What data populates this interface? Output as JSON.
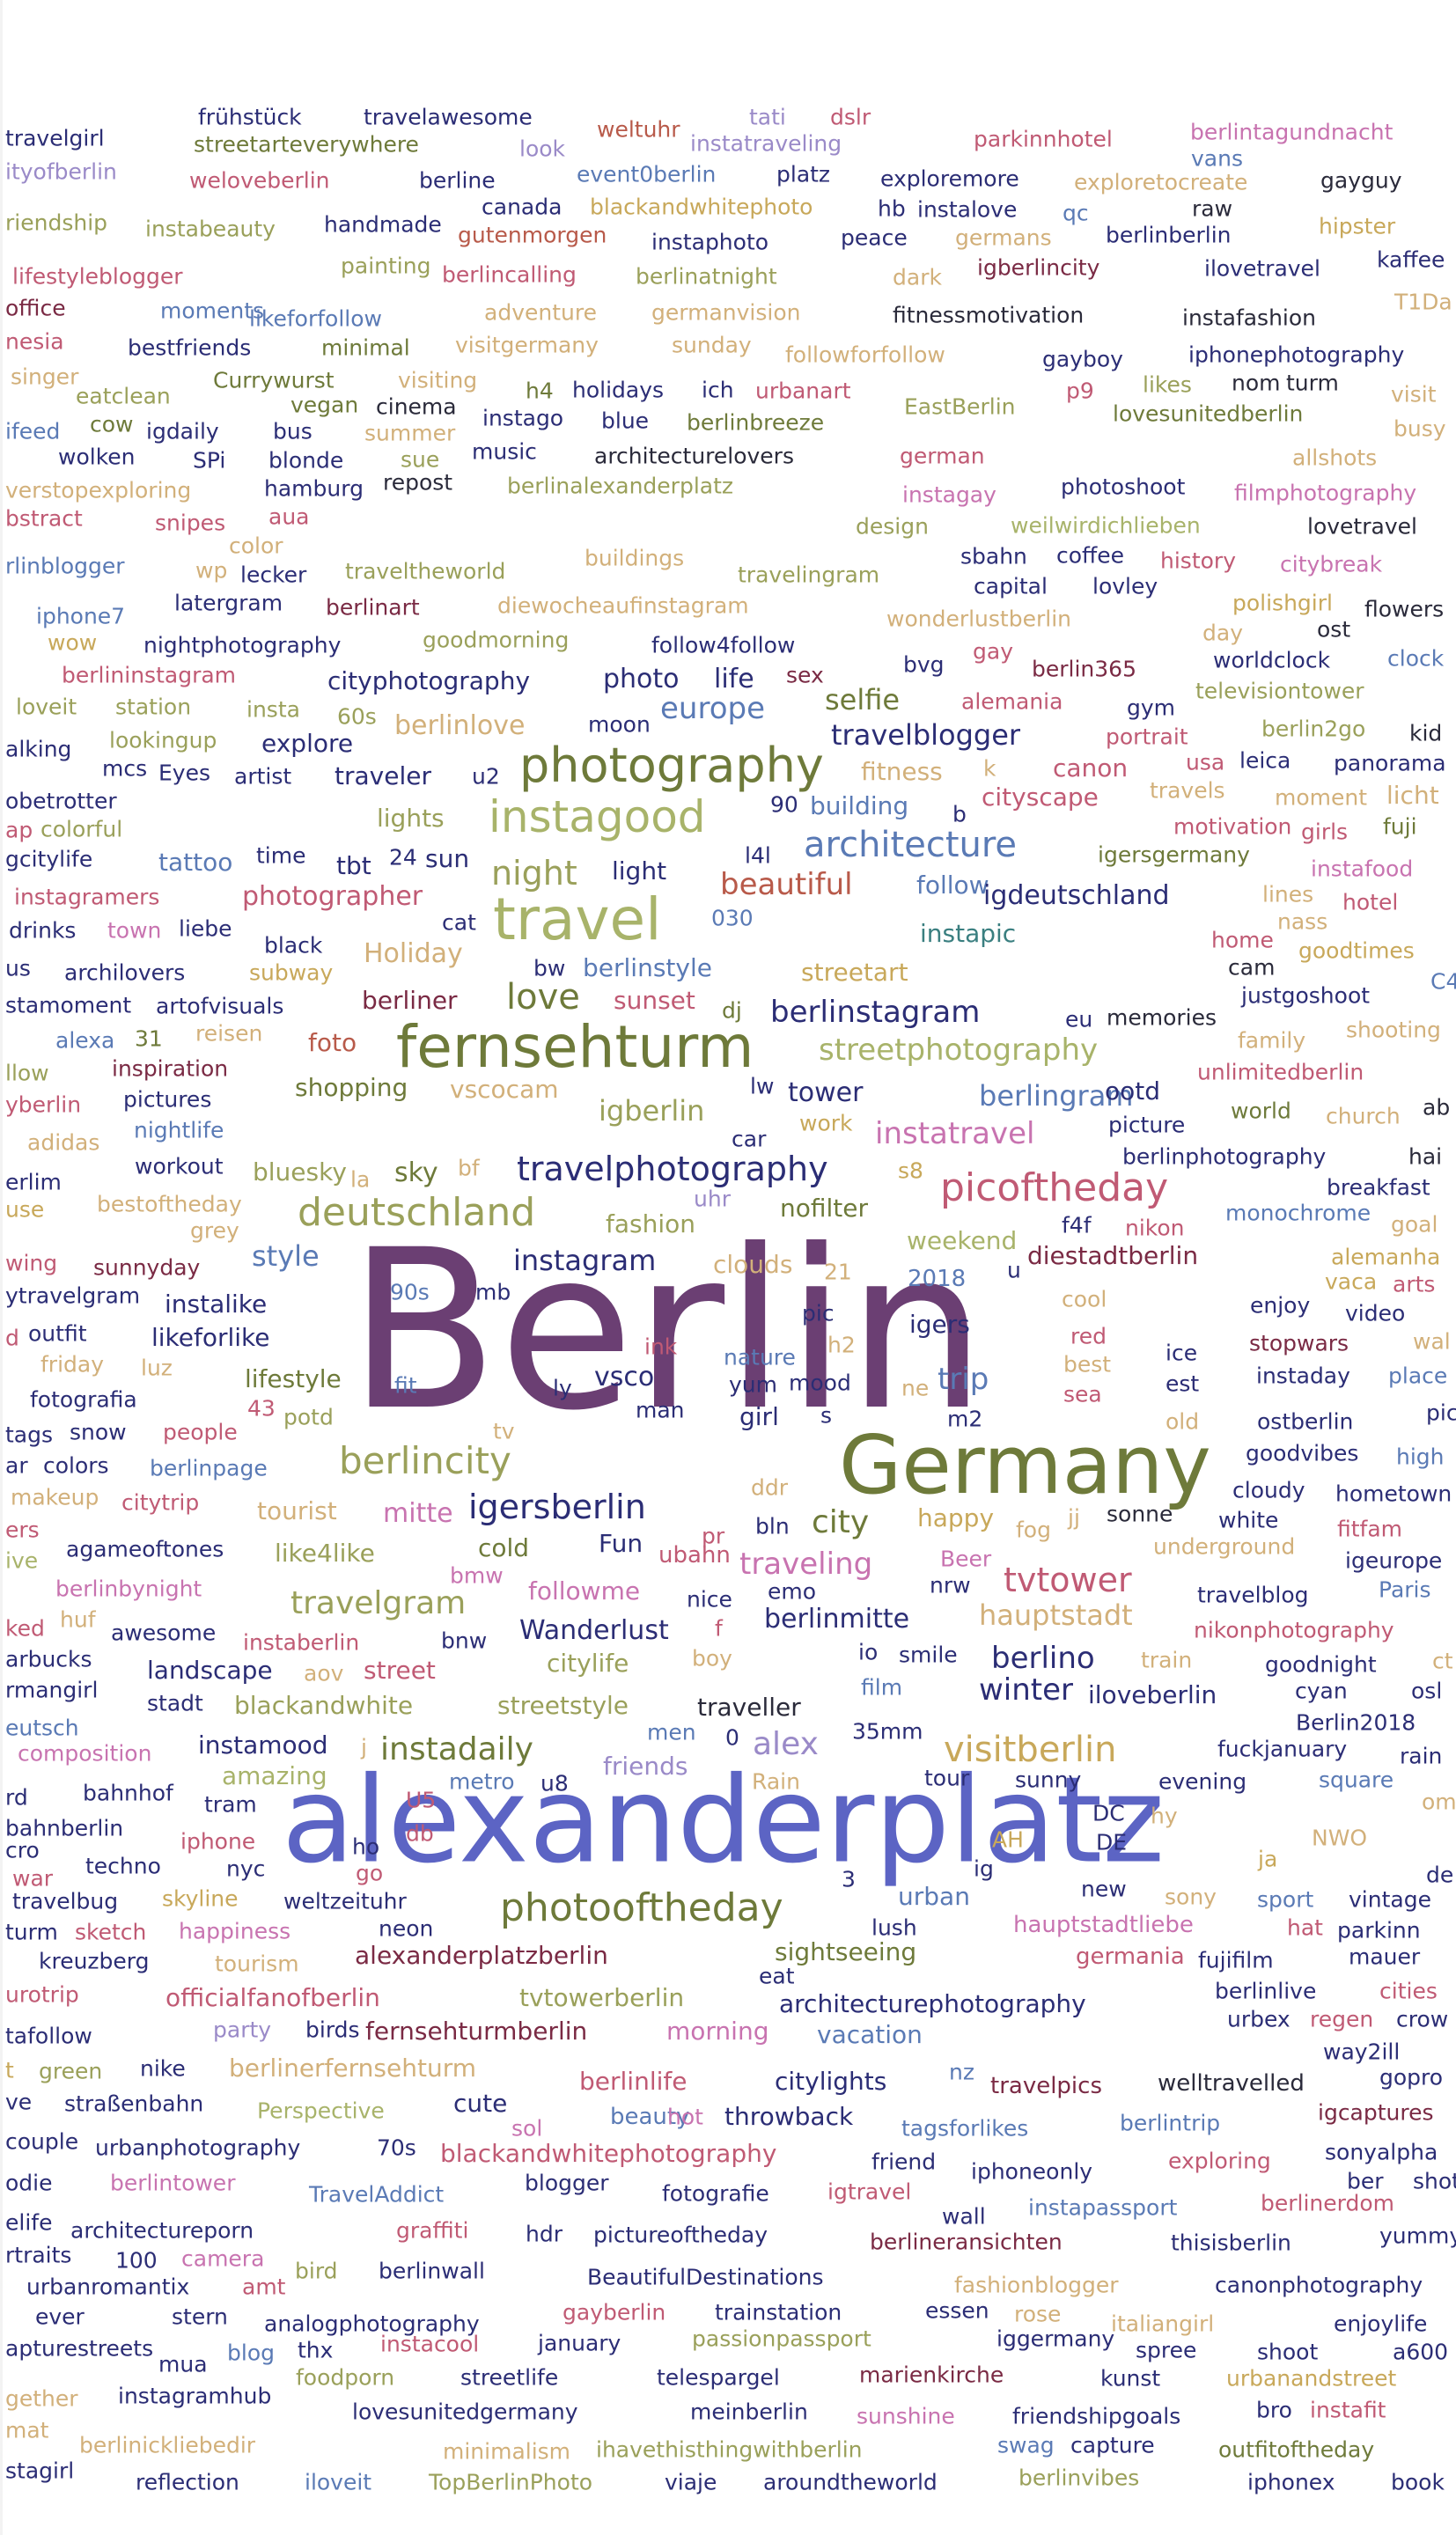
{
  "palette": {
    "purple": "#6b3f73",
    "olive": "#6e7a3a",
    "blue": "#5c64c4",
    "gold": "#c8a85a",
    "tan": "#d2b07a",
    "khaki": "#9aa05a",
    "rose": "#c05a74",
    "pink": "#c873b0",
    "maroon": "#7a2a44",
    "navy": "#2b2d75",
    "teal": "#3a7f80",
    "dark": "#2a2a3a",
    "sage": "#a8b36a",
    "steel": "#5a7ab5",
    "rust": "#b85a4a",
    "lav": "#9a8ac8"
  },
  "words": [
    "Berlin",
    "alexanderplatz",
    "Germany",
    "fernsehturm",
    "travel",
    "photography",
    "instagood",
    "love",
    "deutschland",
    "picoftheday",
    "travelphotography",
    "architecture",
    "berlincity",
    "igersberlin",
    "photooftheday",
    "visitberlin",
    "instadaily",
    "city",
    "tvtower",
    "travelgram",
    "instatravel",
    "streetphotography",
    "berlinstagram",
    "night",
    "beautiful",
    "europe",
    "selfie",
    "travelblogger",
    "alex",
    "trip",
    "vsco",
    "instagram",
    "igberlin",
    "berlingram",
    "tower",
    "streetart",
    "berlinstyle",
    "follow",
    "igdeutschland",
    "instapic",
    "sky",
    "fashion",
    "nofilter",
    "style",
    "winter",
    "berlino",
    "traveling",
    "hauptstadt",
    "berlinmitte",
    "Wanderlust",
    "followme",
    "Fun",
    "cold",
    "ubahn",
    "mitte",
    "like4like",
    "lifestyle",
    "likeforlike",
    "instalike",
    "igers",
    "weekend",
    "diestadtberlin",
    "2018",
    "streetstyle",
    "citylife",
    "blackandwhite",
    "street",
    "landscape",
    "traveller",
    "iloveberlin",
    "friends",
    "amazing",
    "sightseeing",
    "urban",
    "architecturephotography",
    "germania",
    "hauptstadtliebe",
    "fernsehturmberlin",
    "alexanderplatzberlin",
    "officialfanofberlin",
    "tvtowerberlin",
    "morning",
    "vacation",
    "citylights",
    "blackandwhitephotography",
    "throwback",
    "beauty",
    "travelpics",
    "welltravelled",
    "berlinlife",
    "berlinerfernsehturm",
    "frühstück",
    "travelawesome",
    "weltuhr",
    "tati",
    "dslr",
    "travelgirl",
    "streetarteverywhere",
    "look",
    "instatraveling",
    "parkinnhotel",
    "berlintagundnacht",
    "ityofberlin",
    "weloveberlin",
    "berline",
    "event0berlin",
    "platz",
    "exploremore",
    "exploretocreate",
    "gayguy",
    "vans",
    "riendship",
    "instabeauty",
    "handmade",
    "canada",
    "blackandwhitephoto",
    "hb",
    "instalove",
    "raw",
    "hipster",
    "qc",
    "berlinberlin",
    "gutenmorgen",
    "instaphoto",
    "peace",
    "germans",
    "igberlincity",
    "ilovetravel",
    "kaffee",
    "lifestyleblogger",
    "painting",
    "berlincalling",
    "berlinatnight",
    "dark",
    "office",
    "moments",
    "likeforfollow",
    "adventure",
    "germanvision",
    "fitnessmotivation",
    "instafashion",
    "T1Da",
    "nesia",
    "bestfriends",
    "minimal",
    "visitgermany",
    "sunday",
    "followforfollow",
    "gayboy",
    "iphonephotography",
    "singer",
    "Currywurst",
    "visiting",
    "eatclean",
    "vegan",
    "cinema",
    "h4",
    "holidays",
    "ich",
    "urbanart",
    "p9",
    "likes",
    "nom",
    "turm",
    "EastBerlin",
    "visit",
    "ifeed",
    "cow",
    "igdaily",
    "bus",
    "summer",
    "instago",
    "blue",
    "berlinbreeze",
    "lovesunitedberlin",
    "busy",
    "wolken",
    "SPi",
    "blonde",
    "sue",
    "music",
    "architecturelovers",
    "german",
    "allshots",
    "verstopexploring",
    "hamburg",
    "repost",
    "berlinalexanderplatz",
    "photoshoot",
    "filmphotography",
    "bstract",
    "snipes",
    "aua",
    "instagay",
    "design",
    "weilwirdichlieben",
    "lovetravel",
    "color",
    "rlinblogger",
    "wp",
    "lecker",
    "traveltheworld",
    "buildings",
    "travelingram",
    "sbahn",
    "coffee",
    "history",
    "citybreak",
    "capital",
    "lovley",
    "flowers",
    "iphone7",
    "latergram",
    "berlinart",
    "diewocheaufinstagram",
    "wonderlustberlin",
    "polishgirl",
    "ost",
    "day",
    "wow",
    "nightphotography",
    "goodmorning",
    "follow4follow",
    "gay",
    "worldclock",
    "clock",
    "berlininstagram",
    "cityphotography",
    "photo",
    "life",
    "sex",
    "bvg",
    "berlin365",
    "televisiontower",
    "loveit",
    "station",
    "insta",
    "60s",
    "alemania",
    "gym",
    "berlinlove",
    "moon",
    "portrait",
    "berlin2go",
    "kid",
    "alking",
    "mcs",
    "Eyes",
    "artist",
    "traveler",
    "u2",
    "lookingup",
    "explore",
    "fitness",
    "k",
    "canon",
    "usa",
    "leica",
    "panorama",
    "obetrotter",
    "90",
    "building",
    "cityscape",
    "travels",
    "moment",
    "licht",
    "ap",
    "colorful",
    "lights",
    "b",
    "motivation",
    "girls",
    "fuji",
    "gcitylife",
    "tattoo",
    "time",
    "tbt",
    "24",
    "sun",
    "l4l",
    "igersgermany",
    "instafood",
    "instagramers",
    "photographer",
    "light",
    "lines",
    "hotel",
    "drinks",
    "town",
    "liebe",
    "black",
    "cat",
    "030",
    "nass",
    "goodtimes",
    "Holiday",
    "home",
    "cam",
    "bw",
    "us",
    "archilovers",
    "subway",
    "justgoshoot",
    "C4",
    "stamoment",
    "artofvisuals",
    "berliner",
    "sunset",
    "dj",
    "eu",
    "memories",
    "shooting",
    "family",
    "alexa",
    "31",
    "reisen",
    "foto",
    "inspiration",
    "unlimitedberlin",
    "llow",
    "shopping",
    "vscocam",
    "lw",
    "yberlin",
    "pictures",
    "ootd",
    "world",
    "church",
    "ab",
    "adidas",
    "nightlife",
    "work",
    "car",
    "picture",
    "workout",
    "bluesky",
    "bf",
    "berlinphotography",
    "hai",
    "erlim",
    "la",
    "s8",
    "breakfast",
    "use",
    "bestoftheday",
    "uhr",
    "f4f",
    "nikon",
    "monochrome",
    "goal",
    "grey",
    "wing",
    "sunnyday",
    "clouds",
    "21",
    "alemanha",
    "vaca",
    "arts",
    "ytravelgram",
    "90s",
    "mb",
    "u",
    "enjoy",
    "cool",
    "video",
    "wal",
    "ink",
    "h2",
    "red",
    "ice",
    "stopwars",
    "d",
    "outfit",
    "friday",
    "luz",
    "best",
    "instaday",
    "place",
    "fotografia",
    "fit",
    "ly",
    "nature",
    "yum",
    "mood",
    "ne",
    "sea",
    "est",
    "pic",
    "43",
    "potd",
    "man",
    "m2",
    "old",
    "ostberlin",
    "tags",
    "snow",
    "people",
    "tv",
    "girl",
    "s",
    "goodvibes",
    "high",
    "ar",
    "colors",
    "berlinpage",
    "cloudy",
    "hometown",
    "makeup",
    "citytrip",
    "tourist",
    "happy",
    "ddr",
    "jj",
    "sonne",
    "ers",
    "white",
    "fog",
    "fitfam",
    "agameoftones",
    "pr",
    "bln",
    "underground",
    "igeurope",
    "ive",
    "bmw",
    "Beer",
    "nrw",
    "travelblog",
    "Paris",
    "berlinbynight",
    "emo",
    "nice",
    "ked",
    "huf",
    "awesome",
    "bnw",
    "instaberlin",
    "f",
    "nikonphotography",
    "arbucks",
    "boy",
    "io",
    "smile",
    "train",
    "goodnight",
    "ct",
    "aov",
    "rmangirl",
    "stadt",
    "film",
    "cyan",
    "osl",
    "eutsch",
    "men",
    "Berlin2018",
    "instamood",
    "j",
    "0",
    "35mm",
    "fuckjanuary",
    "rain",
    "composition",
    "metro",
    "u8",
    "Rain",
    "tour",
    "sunny",
    "square",
    "rd",
    "bahnhof",
    "tram",
    "U5",
    "evening",
    "ome",
    "bahnberlin",
    "ho",
    "DC",
    "hy",
    "NWO",
    "db",
    "AH",
    "DE",
    "cro",
    "iphone",
    "techno",
    "nyc",
    "ig",
    "ja",
    "war",
    "go",
    "3",
    "de",
    "travelbug",
    "skyline",
    "weltzeituhr",
    "new",
    "sony",
    "sport",
    "vintage",
    "turm",
    "sketch",
    "happiness",
    "neon",
    "lush",
    "hat",
    "parkinn",
    "kreuzberg",
    "tourism",
    "mauer",
    "urotrip",
    "eat",
    "fujifilm",
    "berlinlive",
    "cities",
    "party",
    "birds",
    "urbex",
    "regen",
    "crow",
    "tafollow",
    "nz",
    "way2ill",
    "t",
    "green",
    "nike",
    "gopro",
    "ve",
    "straßenbahn",
    "Perspective",
    "cute",
    "sol",
    "hot",
    "igcaptures",
    "couple",
    "urbanphotography",
    "70s",
    "tagsforlikes",
    "berlintrip",
    "sonyalpha",
    "odie",
    "berlintower",
    "TravelAddict",
    "blogger",
    "friend",
    "iphoneonly",
    "exploring",
    "ber",
    "shot",
    "elife",
    "igtravel",
    "wall",
    "berlinerdom",
    "architectureporn",
    "graffiti",
    "fotografie",
    "instapassport",
    "yummy",
    "rtraits",
    "100",
    "camera",
    "hdr",
    "pictureoftheday",
    "berlineransichten",
    "thisisberlin",
    "urbanromantix",
    "amt",
    "bird",
    "berlinwall",
    "BeautifulDestinations",
    "fashionblogger",
    "canonphotography",
    "ever",
    "stern",
    "gayberlin",
    "trainstation",
    "essen",
    "rose",
    "italiangirl",
    "apturestreets",
    "analogphotography",
    "blog",
    "thx",
    "instacool",
    "january",
    "passionpassport",
    "iggermany",
    "spree",
    "shoot",
    "enjoylife",
    "a600",
    "mua",
    "foodporn",
    "streetlife",
    "telespargel",
    "marienkirche",
    "kunst",
    "urbanandstreet",
    "gether",
    "instagramhub",
    "friendshipgoals",
    "bro",
    "instafit",
    "mat",
    "lovesunitedgermany",
    "meinberlin",
    "sunshine",
    "berlinickliebedir",
    "minimalism",
    "ihavethisthingwithberlin",
    "swag",
    "capture",
    "outfitoftheday",
    "stagirl",
    "reflection",
    "iloveit",
    "TopBerlinPhoto",
    "viaje",
    "aroundtheworld",
    "berlinvibes",
    "iphonex",
    "book"
  ]
}
